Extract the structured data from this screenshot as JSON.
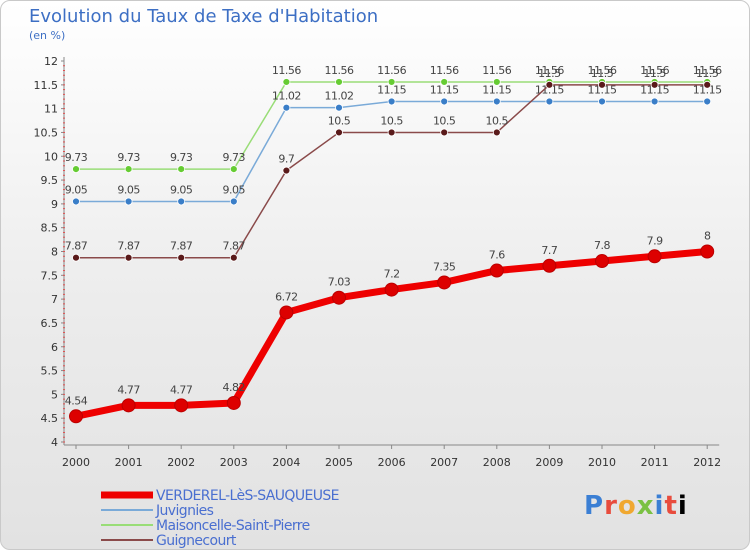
{
  "header": {
    "title": "Evolution du Taux de Taxe d'Habitation",
    "subtitle": "(en %)"
  },
  "logo": {
    "letters": [
      "P",
      "r",
      "o",
      "x",
      "i",
      "t",
      "i"
    ]
  },
  "chart_data": {
    "type": "line",
    "categories": [
      "2000",
      "2001",
      "2002",
      "2003",
      "2004",
      "2005",
      "2006",
      "2007",
      "2008",
      "2009",
      "2010",
      "2011",
      "2012"
    ],
    "ylim": [
      4,
      12
    ],
    "yticks": [
      "4",
      "4.5",
      "5",
      "5.5",
      "6",
      "6.5",
      "7",
      "7.5",
      "8",
      "8.5",
      "9",
      "9.5",
      "10",
      "10.5",
      "11",
      "11.5",
      "12"
    ],
    "grid": false,
    "legend_position": "bottom-left",
    "series": [
      {
        "name": "VERDEREL-LèS-SAUQUEUSE",
        "color": "#ee0000",
        "marker": "#dd0000",
        "width": 7,
        "values": [
          4.54,
          4.77,
          4.77,
          4.82,
          6.72,
          7.03,
          7.2,
          7.35,
          7.6,
          7.7,
          7.8,
          7.9,
          8
        ],
        "labels": [
          "4.54",
          "4.77",
          "4.77",
          "4.82",
          "6.72",
          "7.03",
          "7.2",
          "7.35",
          "7.6",
          "7.7",
          "7.8",
          "7.9",
          "8"
        ]
      },
      {
        "name": "Juvignies",
        "color": "#7aaad8",
        "marker": "#3a7ec8",
        "width": 1.5,
        "values": [
          9.05,
          9.05,
          9.05,
          9.05,
          11.02,
          11.02,
          11.15,
          11.15,
          11.15,
          11.15,
          11.15,
          11.15,
          11.15
        ],
        "labels": [
          "9.05",
          "9.05",
          "9.05",
          "9.05",
          "11.02",
          "11.02",
          "11.15",
          "11.15",
          "11.15",
          "11.15",
          "11.15",
          "11.15",
          "11.15"
        ]
      },
      {
        "name": "Maisoncelle-Saint-Pierre",
        "color": "#99dd77",
        "marker": "#66cc33",
        "width": 1.5,
        "values": [
          9.73,
          9.73,
          9.73,
          9.73,
          11.56,
          11.56,
          11.56,
          11.56,
          11.56,
          11.56,
          11.56,
          11.56,
          11.56
        ],
        "labels": [
          "9.73",
          "9.73",
          "9.73",
          "9.73",
          "11.56",
          "11.56",
          "11.56",
          "11.56",
          "11.56",
          "11.56",
          "11.56",
          "11.56",
          "11.56"
        ]
      },
      {
        "name": "Guignecourt",
        "color": "#8a4a4a",
        "marker": "#5a1a1a",
        "width": 1.5,
        "values": [
          7.87,
          7.87,
          7.87,
          7.87,
          9.7,
          10.5,
          10.5,
          10.5,
          10.5,
          11.5,
          11.5,
          11.5,
          11.5
        ],
        "labels": [
          "7.87",
          "7.87",
          "7.87",
          "7.87",
          "9.7",
          "10.5",
          "10.5",
          "10.5",
          "10.5",
          "11.5",
          "11.5",
          "11.5",
          "11.5"
        ]
      }
    ]
  }
}
